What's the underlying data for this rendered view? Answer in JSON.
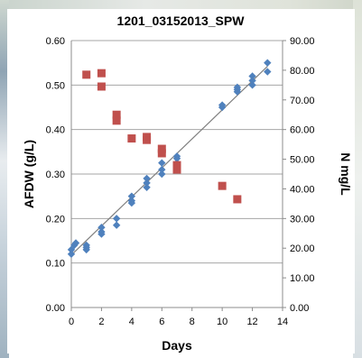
{
  "chart_data": {
    "type": "scatter",
    "title": "1201_03152013_SPW",
    "xlabel": "Days",
    "ylabel_left": "AFDW (g/L)",
    "ylabel_right": "N mg/L",
    "xlim": [
      0,
      14
    ],
    "ylim_left": [
      0,
      0.6
    ],
    "ylim_right": [
      0,
      90
    ],
    "x_ticks": [
      "0",
      "2",
      "4",
      "6",
      "8",
      "10",
      "12",
      "14"
    ],
    "y_left_ticks": [
      "0.00",
      "0.10",
      "0.20",
      "0.30",
      "0.40",
      "0.50",
      "0.60"
    ],
    "y_right_ticks": [
      "0.00",
      "10.00",
      "20.00",
      "30.00",
      "40.00",
      "50.00",
      "60.00",
      "70.00",
      "80.00",
      "90.00"
    ],
    "grid": "horizontal",
    "series": [
      {
        "axis": "left",
        "marker": "diamond",
        "color": "#4F81BD",
        "points": [
          [
            0,
            0.12
          ],
          [
            0,
            0.13
          ],
          [
            0.2,
            0.14
          ],
          [
            0.3,
            0.145
          ],
          [
            1,
            0.13
          ],
          [
            1,
            0.135
          ],
          [
            1,
            0.14
          ],
          [
            2,
            0.165
          ],
          [
            2,
            0.17
          ],
          [
            2,
            0.18
          ],
          [
            3,
            0.185
          ],
          [
            3,
            0.2
          ],
          [
            4,
            0.235
          ],
          [
            4,
            0.24
          ],
          [
            4,
            0.25
          ],
          [
            5,
            0.27
          ],
          [
            5,
            0.28
          ],
          [
            5,
            0.29
          ],
          [
            6,
            0.3
          ],
          [
            6,
            0.31
          ],
          [
            6,
            0.325
          ],
          [
            7,
            0.325
          ],
          [
            7,
            0.335
          ],
          [
            7,
            0.34
          ],
          [
            10,
            0.45
          ],
          [
            10,
            0.455
          ],
          [
            11,
            0.485
          ],
          [
            11,
            0.49
          ],
          [
            11,
            0.495
          ],
          [
            12,
            0.5
          ],
          [
            12,
            0.51
          ],
          [
            12,
            0.52
          ],
          [
            13,
            0.53
          ],
          [
            13,
            0.55
          ]
        ]
      },
      {
        "axis": "right",
        "marker": "square",
        "color": "#C0504D",
        "points": [
          [
            1,
            78.5
          ],
          [
            2,
            79.0
          ],
          [
            2,
            74.5
          ],
          [
            3,
            65.0
          ],
          [
            3,
            63.0
          ],
          [
            4,
            57.0
          ],
          [
            5,
            57.5
          ],
          [
            5,
            56.5
          ],
          [
            6,
            53.5
          ],
          [
            6,
            52.0
          ],
          [
            7,
            48.0
          ],
          [
            7,
            46.5
          ],
          [
            10,
            41.0
          ],
          [
            11,
            36.5
          ]
        ]
      }
    ],
    "trendline": {
      "series": 0,
      "from": [
        0,
        0.118
      ],
      "to": [
        13,
        0.542
      ],
      "color": "#7F7F7F"
    }
  }
}
